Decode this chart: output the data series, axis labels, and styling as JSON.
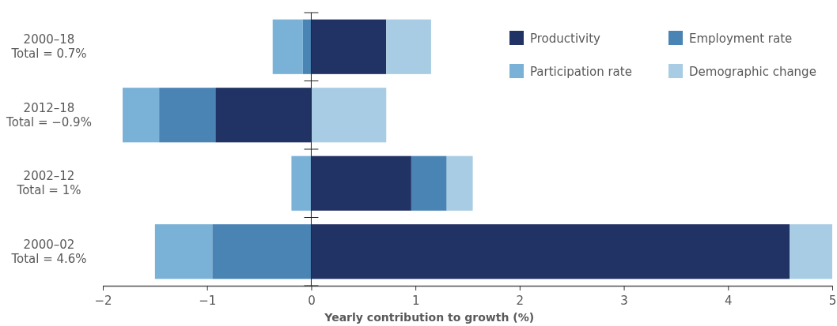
{
  "chart_data": {
    "type": "bar",
    "orientation": "horizontal",
    "stacked": true,
    "categories": [
      "2000–18\nTotal = 0.7%",
      "2012–18\nTotal = −0.9%",
      "2002–12\nTotal = 1%",
      "2000–02\nTotal = 4.6%"
    ],
    "series": [
      {
        "name": "Productivity",
        "color": "#213264",
        "values": [
          0.72,
          -0.92,
          0.96,
          4.59
        ]
      },
      {
        "name": "Employment rate",
        "color": "#4a84b5",
        "values": [
          -0.08,
          -0.54,
          0.34,
          -0.95
        ]
      },
      {
        "name": "Participation rate",
        "color": "#7ab1d7",
        "values": [
          -0.29,
          -0.35,
          -0.19,
          -0.55
        ]
      },
      {
        "name": "Demographic change",
        "color": "#a8cce3",
        "values": [
          0.43,
          0.72,
          0.25,
          0.41
        ]
      }
    ],
    "xlim": [
      -2,
      5
    ],
    "xticks": [
      {
        "value": -2,
        "label": "−2"
      },
      {
        "value": -1,
        "label": "−1"
      },
      0,
      1,
      2,
      3,
      4,
      5
    ],
    "xlabel": "Yearly contribution to growth (%)",
    "legend": "top right"
  }
}
